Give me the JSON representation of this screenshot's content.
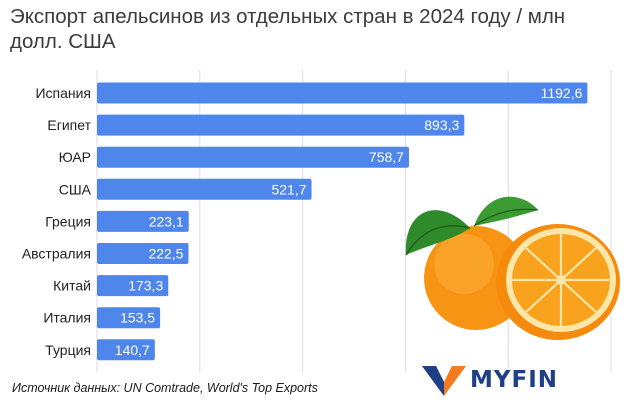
{
  "title": "Экспорт апельсинов из отдельных стран в 2024 году / млн долл. США",
  "source": "Источник данных: UN Comtrade, World's Top Exports",
  "logo": {
    "text": "MYFIN",
    "mark_color": "#f47b20",
    "text_color": "#1f3f86"
  },
  "orange_illustration": "orange-fruit-icon",
  "chart_data": {
    "type": "bar",
    "orientation": "horizontal",
    "title": "Экспорт апельсинов из отдельных стран в 2024 году / млн долл. США",
    "categories": [
      "Испания",
      "Египет",
      "ЮАР",
      "США",
      "Греция",
      "Австралия",
      "Китай",
      "Италия",
      "Турция"
    ],
    "values": [
      1192.6,
      893.3,
      758.7,
      521.7,
      223.1,
      222.5,
      173.3,
      153.5,
      140.7
    ],
    "value_labels": [
      "1192,6",
      "893,3",
      "758,7",
      "521,7",
      "223,1",
      "222,5",
      "173,3",
      "153,5",
      "140,7"
    ],
    "xlim": [
      0,
      1250
    ],
    "grid": true,
    "bar_color": "#4f86ec"
  }
}
